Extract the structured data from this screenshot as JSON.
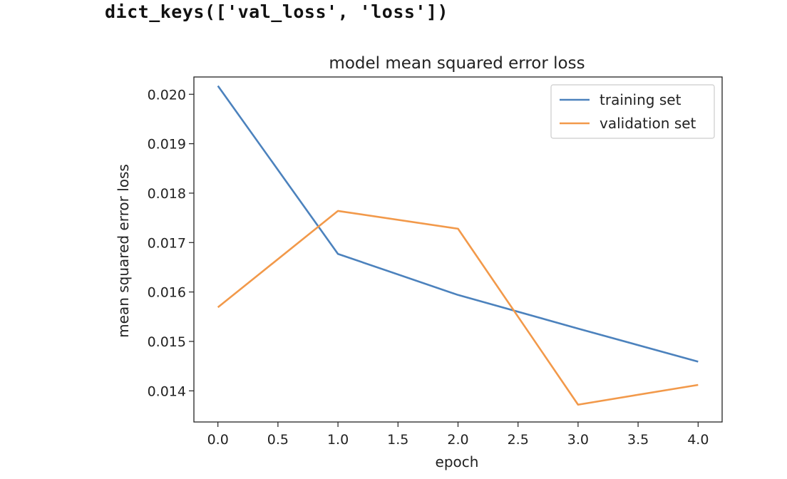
{
  "cell_output": {
    "text": "dict_keys(['val_loss', 'loss'])"
  },
  "chart_data": {
    "type": "line",
    "title": "model mean squared error loss",
    "xlabel": "epoch",
    "ylabel": "mean squared error loss",
    "x": [
      0,
      1,
      2,
      3,
      4
    ],
    "xticks": [
      "0.0",
      "0.5",
      "1.0",
      "1.5",
      "2.0",
      "2.5",
      "3.0",
      "3.5",
      "4.0"
    ],
    "yticks": [
      "0.014",
      "0.015",
      "0.016",
      "0.017",
      "0.018",
      "0.019",
      "0.020"
    ],
    "xlim": [
      -0.2,
      4.2
    ],
    "ylim": [
      0.01337,
      0.02035
    ],
    "grid": false,
    "legend_position": "top-right",
    "series": [
      {
        "name": "training set",
        "color": "#4c82bd",
        "values": [
          0.02017,
          0.01677,
          0.01594,
          0.01526,
          0.01459
        ]
      },
      {
        "name": "validation set",
        "color": "#f2994a",
        "values": [
          0.01569,
          0.01764,
          0.01728,
          0.01372,
          0.01412
        ]
      }
    ]
  }
}
